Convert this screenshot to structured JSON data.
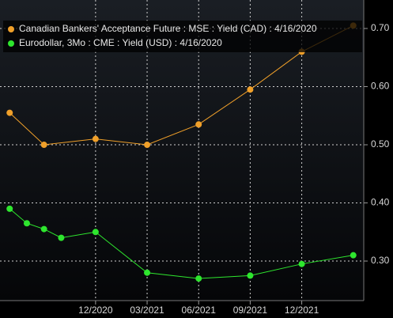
{
  "chart_data": {
    "type": "line",
    "series": [
      {
        "name": "Canadian Bankers' Acceptance Future : MSE : Yield (CAD) : 4/16/2020",
        "color": "#f0a02a",
        "x": [
          "2020-07",
          "2020-09",
          "2020-12",
          "2021-03",
          "2021-06",
          "2021-09",
          "2021-12",
          "2022-03"
        ],
        "values": [
          0.555,
          0.5,
          0.51,
          0.5,
          0.535,
          0.595,
          0.66,
          0.705
        ]
      },
      {
        "name": "Eurodollar, 3Mo : CME : Yield (USD) : 4/16/2020",
        "color": "#2ee62e",
        "x": [
          "2020-07",
          "2020-08",
          "2020-09",
          "2020-10",
          "2020-12",
          "2021-03",
          "2021-06",
          "2021-09",
          "2021-12",
          "2022-03"
        ],
        "values": [
          0.39,
          0.365,
          0.355,
          0.34,
          0.35,
          0.28,
          0.27,
          0.275,
          0.295,
          0.31
        ]
      }
    ],
    "xlim": [
      "2020-06",
      "2022-04"
    ],
    "xticks": [
      {
        "value": "2020-12",
        "label": "12/2020"
      },
      {
        "value": "2021-03",
        "label": "03/2021"
      },
      {
        "value": "2021-06",
        "label": "06/2021"
      },
      {
        "value": "2021-09",
        "label": "09/2021"
      },
      {
        "value": "2021-12",
        "label": "12/2021"
      }
    ],
    "ylim": [
      0.232,
      0.749
    ],
    "yticks": [
      {
        "value": 0.3,
        "label": "0.30"
      },
      {
        "value": 0.4,
        "label": "0.40"
      },
      {
        "value": 0.5,
        "label": "0.50"
      },
      {
        "value": 0.6,
        "label": "0.60"
      },
      {
        "value": 0.7,
        "label": "0.70"
      }
    ],
    "grid": true
  }
}
